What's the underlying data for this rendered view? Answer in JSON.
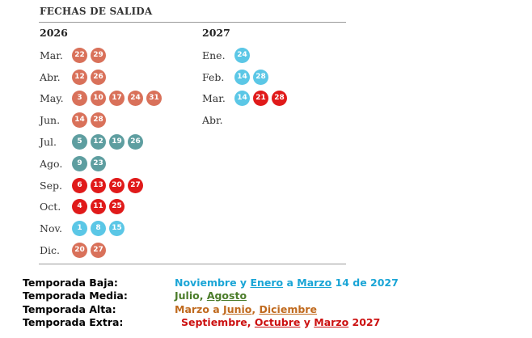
{
  "header": {
    "title": "FECHAS DE SALIDA"
  },
  "colors": {
    "baja": "#5bc7e6",
    "media": "#5e9ea0",
    "alta": "#d9715a",
    "extra": "#e01a1a",
    "baja_text": "#1aa5d6",
    "media_text": "#4b7c2a",
    "alta_text": "#c06a1e",
    "extra_text": "#cc1111",
    "link_text": "#3a4a8a"
  },
  "years": [
    {
      "label": "2026",
      "months": [
        {
          "name": "Mar.",
          "dates": [
            {
              "day": "22",
              "season": "alta"
            },
            {
              "day": "29",
              "season": "alta"
            }
          ]
        },
        {
          "name": "Abr.",
          "dates": [
            {
              "day": "12",
              "season": "alta"
            },
            {
              "day": "26",
              "season": "alta"
            }
          ]
        },
        {
          "name": "May.",
          "dates": [
            {
              "day": "3",
              "season": "alta"
            },
            {
              "day": "10",
              "season": "alta"
            },
            {
              "day": "17",
              "season": "alta"
            },
            {
              "day": "24",
              "season": "alta"
            },
            {
              "day": "31",
              "season": "alta"
            }
          ]
        },
        {
          "name": "Jun.",
          "dates": [
            {
              "day": "14",
              "season": "alta"
            },
            {
              "day": "28",
              "season": "alta"
            }
          ]
        },
        {
          "name": "Jul.",
          "dates": [
            {
              "day": "5",
              "season": "media"
            },
            {
              "day": "12",
              "season": "media"
            },
            {
              "day": "19",
              "season": "media"
            },
            {
              "day": "26",
              "season": "media"
            }
          ]
        },
        {
          "name": "Ago.",
          "dates": [
            {
              "day": "9",
              "season": "media"
            },
            {
              "day": "23",
              "season": "media"
            }
          ]
        },
        {
          "name": "Sep.",
          "dates": [
            {
              "day": "6",
              "season": "extra"
            },
            {
              "day": "13",
              "season": "extra"
            },
            {
              "day": "20",
              "season": "extra"
            },
            {
              "day": "27",
              "season": "extra"
            }
          ]
        },
        {
          "name": "Oct.",
          "dates": [
            {
              "day": "4",
              "season": "extra"
            },
            {
              "day": "11",
              "season": "extra"
            },
            {
              "day": "25",
              "season": "extra"
            }
          ]
        },
        {
          "name": "Nov.",
          "dates": [
            {
              "day": "1",
              "season": "baja"
            },
            {
              "day": "8",
              "season": "baja"
            },
            {
              "day": "15",
              "season": "baja"
            }
          ]
        },
        {
          "name": "Dic.",
          "dates": [
            {
              "day": "20",
              "season": "alta"
            },
            {
              "day": "27",
              "season": "alta"
            }
          ]
        }
      ]
    },
    {
      "label": "2027",
      "months": [
        {
          "name": "Ene.",
          "dates": [
            {
              "day": "24",
              "season": "baja"
            }
          ]
        },
        {
          "name": "Feb.",
          "dates": [
            {
              "day": "14",
              "season": "baja"
            },
            {
              "day": "28",
              "season": "baja"
            }
          ]
        },
        {
          "name": "Mar.",
          "dates": [
            {
              "day": "14",
              "season": "baja"
            },
            {
              "day": "21",
              "season": "extra"
            },
            {
              "day": "28",
              "season": "extra"
            }
          ]
        },
        {
          "name": "Abr.",
          "dates": []
        }
      ]
    }
  ],
  "legend": [
    {
      "label": "Temporada Baja:",
      "season": "baja",
      "pad": false,
      "parts": [
        {
          "text": "Noviembre y ",
          "link": false
        },
        {
          "text": "Enero",
          "link": true
        },
        {
          "text": " a ",
          "link": false
        },
        {
          "text": "Marzo",
          "link": true
        },
        {
          "text": " 14 de 2027",
          "link": false
        }
      ]
    },
    {
      "label": "Temporada Media:",
      "season": "media",
      "pad": false,
      "parts": [
        {
          "text": "Julio, ",
          "link": false
        },
        {
          "text": "Agosto",
          "link": true
        }
      ]
    },
    {
      "label": "Temporada Alta:",
      "season": "alta",
      "pad": false,
      "parts": [
        {
          "text": "Marzo a ",
          "link": false
        },
        {
          "text": "Junio",
          "link": true
        },
        {
          "text": ", ",
          "link": false
        },
        {
          "text": "Diciembre",
          "link": true
        }
      ]
    },
    {
      "label": "Temporada Extra:",
      "season": "extra",
      "pad": true,
      "parts": [
        {
          "text": "Septiembre, ",
          "link": false
        },
        {
          "text": "Octubre",
          "link": true
        },
        {
          "text": " y ",
          "link": false
        },
        {
          "text": "Marzo",
          "link": true
        },
        {
          "text": " 2027",
          "link": false
        }
      ]
    }
  ]
}
